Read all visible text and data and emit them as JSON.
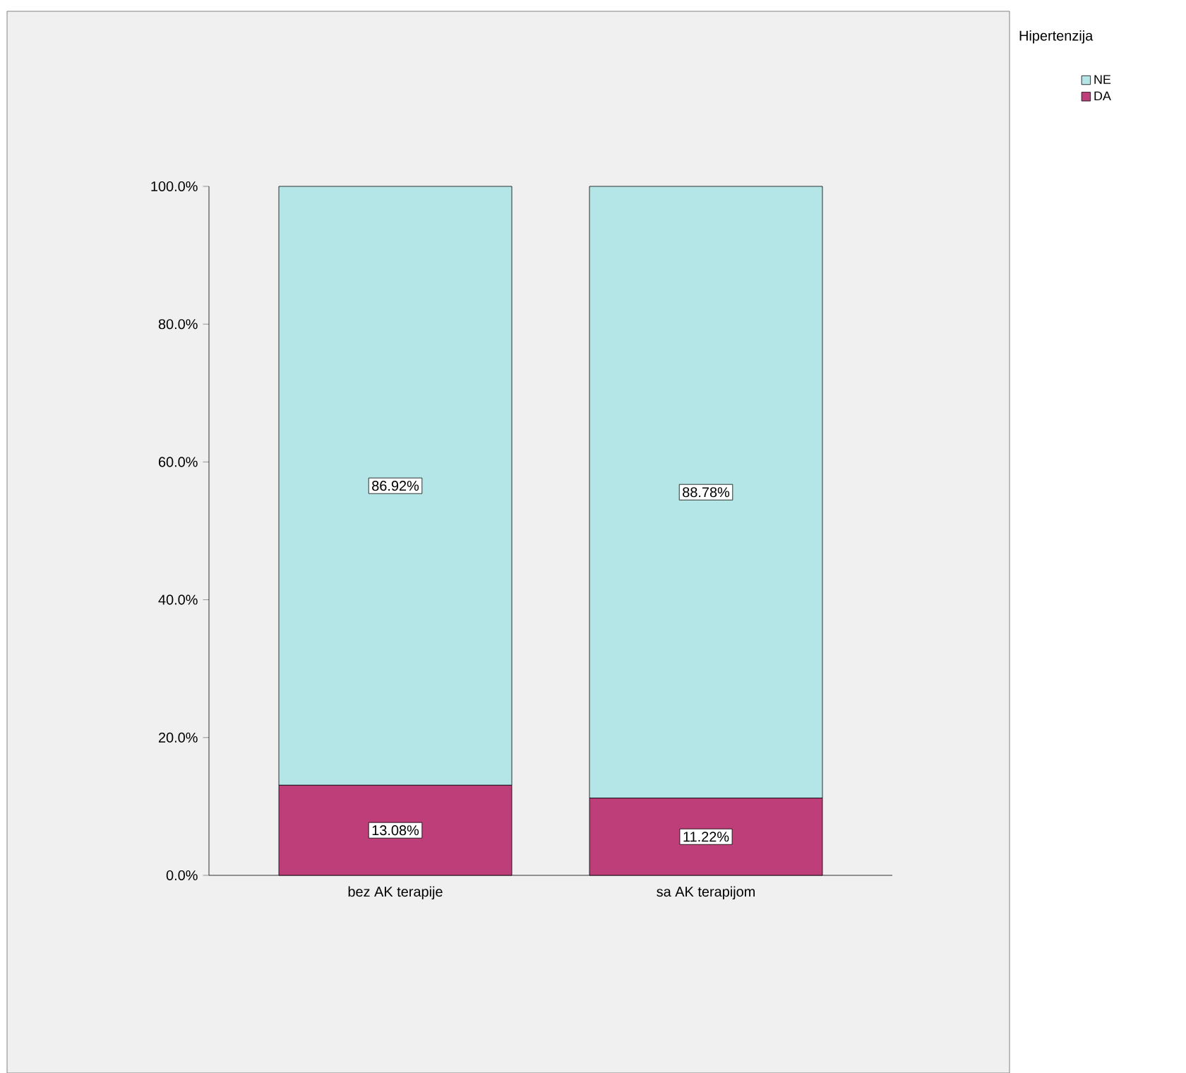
{
  "chart_data": {
    "type": "bar",
    "stacked": true,
    "legend_title": "Hipertenzija",
    "legend": "top right",
    "categories": [
      "bez AK terapije",
      "sa AK terapijom"
    ],
    "series": [
      {
        "name": "DA",
        "color": "#be3e7a",
        "values": [
          13.08,
          11.22
        ],
        "value_labels": [
          "13.08%",
          "11.22%"
        ]
      },
      {
        "name": "NE",
        "color": "#b4e6e8",
        "values": [
          86.92,
          88.78
        ],
        "value_labels": [
          "86.92%",
          "88.78%"
        ]
      }
    ],
    "ylim": [
      0,
      100
    ],
    "yticks": [
      {
        "value": 0,
        "label": "0.0%"
      },
      {
        "value": 20,
        "label": "20.0%"
      },
      {
        "value": 40,
        "label": "40.0%"
      },
      {
        "value": 60,
        "label": "60.0%"
      },
      {
        "value": 80,
        "label": "80.0%"
      },
      {
        "value": 100,
        "label": "100.0%"
      }
    ]
  }
}
